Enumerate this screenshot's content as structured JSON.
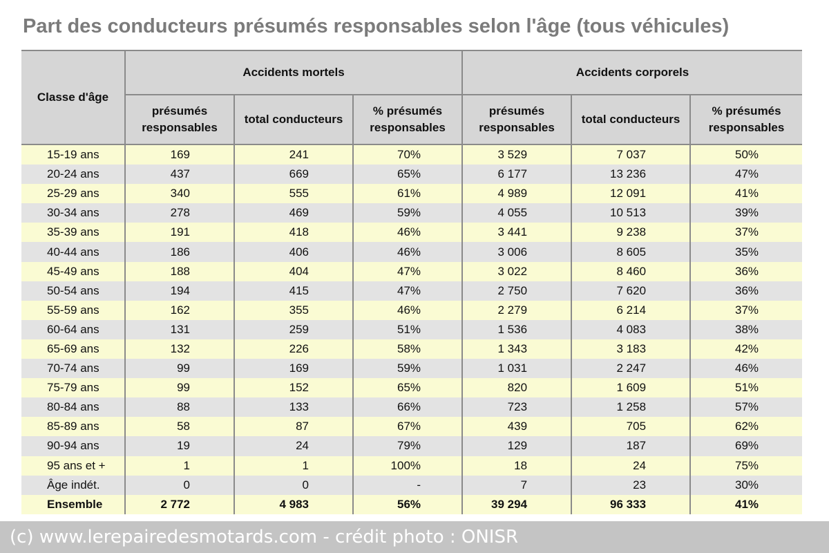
{
  "title": "Part des conducteurs présumés responsables selon l'âge (tous véhicules)",
  "table": {
    "age_header": "Classe d'âge",
    "groups": [
      "Accidents mortels",
      "Accidents corporels"
    ],
    "subheaders": [
      "présumés responsables",
      "total conducteurs",
      "% présumés responsables",
      "présumés responsables",
      "total conducteurs",
      "% présumés responsables"
    ],
    "rows": [
      [
        "15-19 ans",
        "169",
        "241",
        "70%",
        "3 529",
        "7 037",
        "50%"
      ],
      [
        "20-24 ans",
        "437",
        "669",
        "65%",
        "6 177",
        "13 236",
        "47%"
      ],
      [
        "25-29 ans",
        "340",
        "555",
        "61%",
        "4 989",
        "12 091",
        "41%"
      ],
      [
        "30-34 ans",
        "278",
        "469",
        "59%",
        "4 055",
        "10 513",
        "39%"
      ],
      [
        "35-39 ans",
        "191",
        "418",
        "46%",
        "3 441",
        "9 238",
        "37%"
      ],
      [
        "40-44 ans",
        "186",
        "406",
        "46%",
        "3 006",
        "8 605",
        "35%"
      ],
      [
        "45-49 ans",
        "188",
        "404",
        "47%",
        "3 022",
        "8 460",
        "36%"
      ],
      [
        "50-54 ans",
        "194",
        "415",
        "47%",
        "2 750",
        "7 620",
        "36%"
      ],
      [
        "55-59 ans",
        "162",
        "355",
        "46%",
        "2 279",
        "6 214",
        "37%"
      ],
      [
        "60-64 ans",
        "131",
        "259",
        "51%",
        "1 536",
        "4 083",
        "38%"
      ],
      [
        "65-69 ans",
        "132",
        "226",
        "58%",
        "1 343",
        "3 183",
        "42%"
      ],
      [
        "70-74 ans",
        "99",
        "169",
        "59%",
        "1 031",
        "2 247",
        "46%"
      ],
      [
        "75-79 ans",
        "99",
        "152",
        "65%",
        "820",
        "1 609",
        "51%"
      ],
      [
        "80-84 ans",
        "88",
        "133",
        "66%",
        "723",
        "1 258",
        "57%"
      ],
      [
        "85-89 ans",
        "58",
        "87",
        "67%",
        "439",
        "705",
        "62%"
      ],
      [
        "90-94 ans",
        "19",
        "24",
        "79%",
        "129",
        "187",
        "69%"
      ],
      [
        "95 ans et +",
        "1",
        "1",
        "100%",
        "18",
        "24",
        "75%"
      ],
      [
        "Âge indét.",
        "0",
        "0",
        "-",
        "7",
        "23",
        "30%"
      ]
    ],
    "total": [
      "Ensemble",
      "2 772",
      "4 983",
      "56%",
      "39 294",
      "96 333",
      "41%"
    ]
  },
  "credit": "(c) www.lerepairedesmotards.com - crédit photo : ONISR"
}
